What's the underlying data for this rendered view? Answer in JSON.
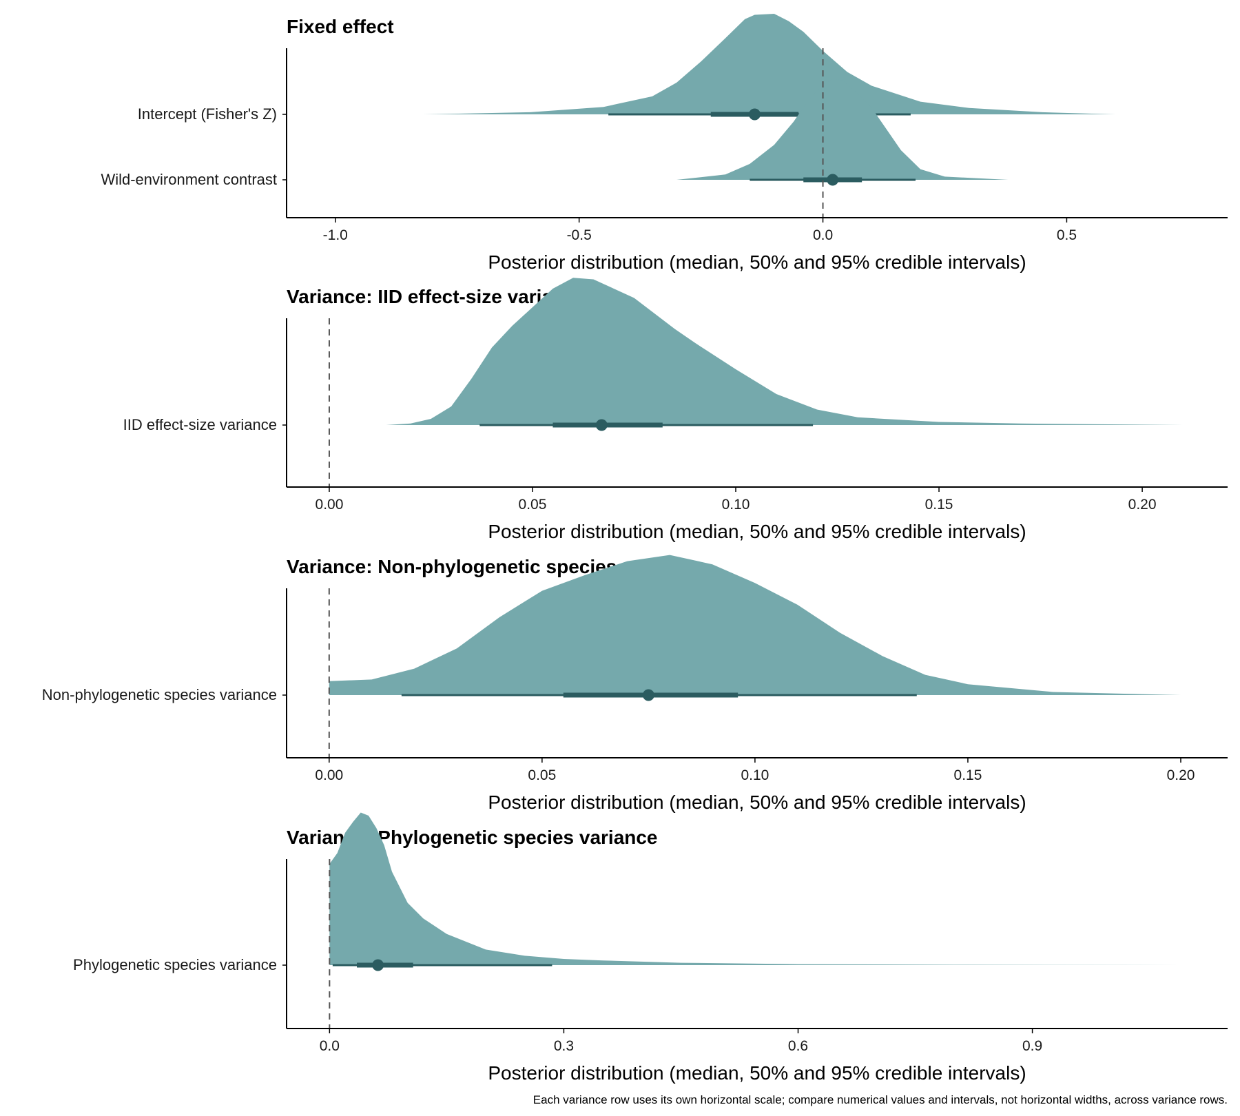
{
  "colors": {
    "density": "#75a9ac",
    "interval": "#2b5c60",
    "axis": "#000000",
    "zero_line": "#555555"
  },
  "caption": "Each variance row uses its own horizontal scale; compare numerical values and intervals, not horizontal widths, across variance rows.",
  "chart_data": [
    {
      "type": "halfeye",
      "title": "Fixed effect",
      "xlabel": "Posterior distribution (median, 50% and 95% credible intervals)",
      "xlim": [
        -1.1,
        0.83
      ],
      "ticks": [
        -1.0,
        -0.5,
        0.0,
        0.5
      ],
      "tick_labels": [
        "-1.0",
        "-0.5",
        "0.0",
        "0.5"
      ],
      "reference_line": 0,
      "rows": [
        {
          "label": "Intercept (Fisher's Z)",
          "median": -0.14,
          "ci50": [
            -0.23,
            -0.05
          ],
          "ci95": [
            -0.44,
            0.18
          ],
          "density_x": [
            -0.82,
            -0.6,
            -0.45,
            -0.35,
            -0.3,
            -0.25,
            -0.2,
            -0.16,
            -0.14,
            -0.1,
            -0.07,
            -0.04,
            0.0,
            0.05,
            0.1,
            0.2,
            0.3,
            0.45,
            0.6
          ],
          "density_y": [
            0.0,
            0.02,
            0.07,
            0.17,
            0.3,
            0.5,
            0.72,
            0.9,
            0.94,
            0.95,
            0.88,
            0.78,
            0.6,
            0.4,
            0.27,
            0.12,
            0.06,
            0.02,
            0.0
          ]
        },
        {
          "label": "Wild-environment contrast",
          "median": 0.02,
          "ci50": [
            -0.04,
            0.08
          ],
          "ci95": [
            -0.15,
            0.19
          ],
          "density_x": [
            -0.3,
            -0.2,
            -0.15,
            -0.1,
            -0.06,
            -0.03,
            0.0,
            0.02,
            0.04,
            0.07,
            0.1,
            0.13,
            0.16,
            0.2,
            0.25,
            0.38
          ],
          "density_y": [
            0.0,
            0.05,
            0.15,
            0.33,
            0.55,
            0.75,
            0.9,
            0.95,
            0.94,
            0.82,
            0.68,
            0.48,
            0.28,
            0.1,
            0.03,
            0.0
          ]
        }
      ]
    },
    {
      "type": "halfeye",
      "title": "Variance: IID effect-size variance",
      "xlabel": "Posterior distribution (median, 50% and 95% credible intervals)",
      "xlim": [
        -0.0105,
        0.221
      ],
      "ticks": [
        0.0,
        0.05,
        0.1,
        0.15,
        0.2
      ],
      "tick_labels": [
        "0.00",
        "0.05",
        "0.10",
        "0.15",
        "0.20"
      ],
      "reference_line": 0,
      "rows": [
        {
          "label": "IID effect-size variance",
          "median": 0.067,
          "ci50": [
            0.055,
            0.082
          ],
          "ci95": [
            0.037,
            0.119
          ],
          "density_x": [
            0.014,
            0.02,
            0.025,
            0.03,
            0.035,
            0.04,
            0.045,
            0.05,
            0.055,
            0.06,
            0.065,
            0.07,
            0.075,
            0.08,
            0.085,
            0.09,
            0.1,
            0.11,
            0.12,
            0.13,
            0.15,
            0.17,
            0.21
          ],
          "density_y": [
            0.0,
            0.01,
            0.04,
            0.12,
            0.3,
            0.5,
            0.64,
            0.76,
            0.88,
            0.95,
            0.94,
            0.88,
            0.82,
            0.72,
            0.62,
            0.53,
            0.36,
            0.2,
            0.1,
            0.05,
            0.02,
            0.01,
            0.0
          ]
        }
      ]
    },
    {
      "type": "halfeye",
      "title": "Variance: Non-phylogenetic species variance",
      "xlabel": "Posterior distribution (median, 50% and 95% credible intervals)",
      "xlim": [
        -0.01,
        0.211
      ],
      "ticks": [
        0.0,
        0.05,
        0.1,
        0.15,
        0.2
      ],
      "tick_labels": [
        "0.00",
        "0.05",
        "0.10",
        "0.15",
        "0.20"
      ],
      "reference_line": 0,
      "rows": [
        {
          "label": "Non-phylogenetic species variance",
          "median": 0.075,
          "ci50": [
            0.055,
            0.096
          ],
          "ci95": [
            0.017,
            0.138
          ],
          "density_x": [
            0.0,
            0.01,
            0.02,
            0.03,
            0.04,
            0.05,
            0.06,
            0.07,
            0.08,
            0.09,
            0.1,
            0.11,
            0.12,
            0.13,
            0.14,
            0.15,
            0.17,
            0.2
          ],
          "density_y": [
            0.09,
            0.1,
            0.17,
            0.3,
            0.5,
            0.67,
            0.77,
            0.86,
            0.9,
            0.84,
            0.72,
            0.58,
            0.4,
            0.25,
            0.13,
            0.07,
            0.02,
            0.0
          ]
        }
      ]
    },
    {
      "type": "halfeye",
      "title": "Variance: Phylogenetic species variance",
      "xlabel": "Posterior distribution (median, 50% and 95% credible intervals)",
      "xlim": [
        -0.055,
        1.15
      ],
      "ticks": [
        0.0,
        0.3,
        0.6,
        0.9
      ],
      "tick_labels": [
        "0.0",
        "0.3",
        "0.6",
        "0.9"
      ],
      "reference_line": 0,
      "rows": [
        {
          "label": "Phylogenetic species variance",
          "median": 0.062,
          "ci50": [
            0.035,
            0.107
          ],
          "ci95": [
            0.004,
            0.285
          ],
          "density_x": [
            0.0,
            0.01,
            0.02,
            0.03,
            0.04,
            0.05,
            0.06,
            0.07,
            0.08,
            0.1,
            0.12,
            0.15,
            0.2,
            0.25,
            0.3,
            0.35,
            0.45,
            0.6,
            0.8,
            1.09
          ],
          "density_y": [
            0.65,
            0.72,
            0.85,
            0.92,
            0.98,
            0.96,
            0.88,
            0.77,
            0.6,
            0.4,
            0.3,
            0.2,
            0.1,
            0.06,
            0.04,
            0.03,
            0.015,
            0.006,
            0.002,
            0.0
          ]
        }
      ]
    }
  ]
}
